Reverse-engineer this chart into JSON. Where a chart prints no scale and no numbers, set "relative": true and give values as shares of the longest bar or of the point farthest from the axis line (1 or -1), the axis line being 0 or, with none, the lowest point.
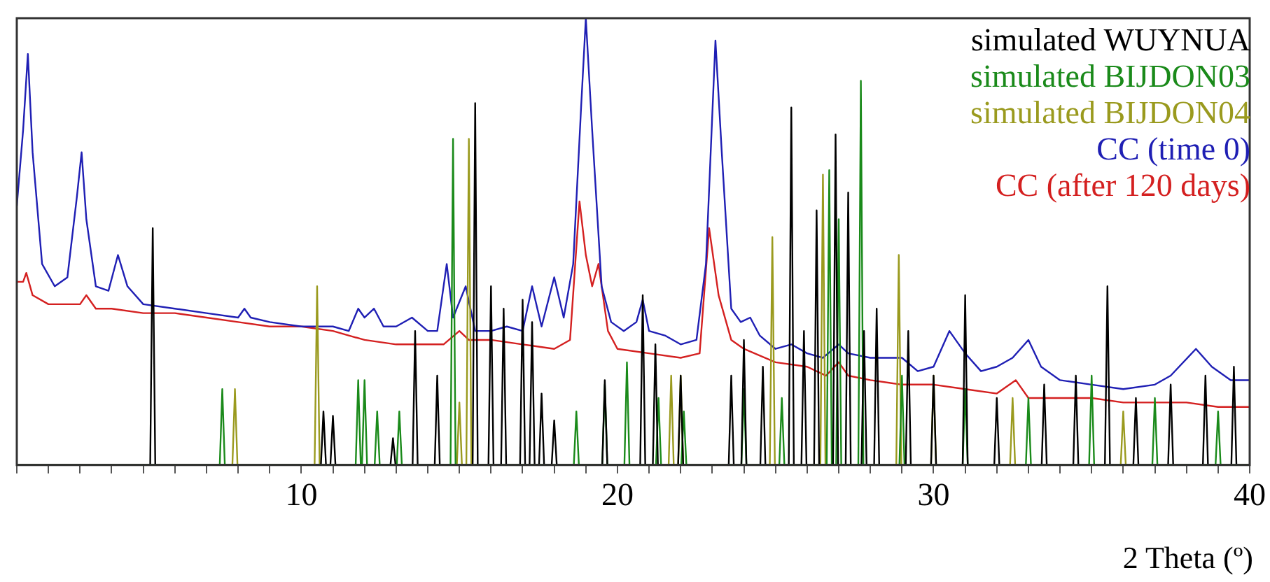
{
  "chart_data": {
    "type": "line",
    "relative": true,
    "xlabel": "2 Theta (º)",
    "legend": "top right",
    "grid": false,
    "marker": "none",
    "line_style": "solid",
    "tick_labels": "x",
    "xlim": [
      1,
      40
    ],
    "xticks": [
      {
        "value": 1,
        "label": null
      },
      {
        "value": 2,
        "label": null
      },
      {
        "value": 3,
        "label": null
      },
      {
        "value": 4,
        "label": null
      },
      {
        "value": 5,
        "label": null
      },
      {
        "value": 6,
        "label": null
      },
      {
        "value": 7,
        "label": null
      },
      {
        "value": 8,
        "label": null
      },
      {
        "value": 9,
        "label": null
      },
      10,
      {
        "value": 11,
        "label": null
      },
      {
        "value": 12,
        "label": null
      },
      {
        "value": 13,
        "label": null
      },
      {
        "value": 14,
        "label": null
      },
      {
        "value": 15,
        "label": null
      },
      {
        "value": 16,
        "label": null
      },
      {
        "value": 17,
        "label": null
      },
      {
        "value": 18,
        "label": null
      },
      {
        "value": 19,
        "label": null
      },
      20,
      {
        "value": 21,
        "label": null
      },
      {
        "value": 22,
        "label": null
      },
      {
        "value": 23,
        "label": null
      },
      {
        "value": 24,
        "label": null
      },
      {
        "value": 25,
        "label": null
      },
      {
        "value": 26,
        "label": null
      },
      {
        "value": 27,
        "label": null
      },
      {
        "value": 28,
        "label": null
      },
      {
        "value": 29,
        "label": null
      },
      30,
      {
        "value": 31,
        "label": null
      },
      {
        "value": 32,
        "label": null
      },
      {
        "value": 33,
        "label": null
      },
      {
        "value": 34,
        "label": null
      },
      {
        "value": 35,
        "label": null
      },
      {
        "value": 36,
        "label": null
      },
      {
        "value": 37,
        "label": null
      },
      {
        "value": 38,
        "label": null
      },
      {
        "value": 39,
        "label": null
      },
      40
    ],
    "series": [
      {
        "name": "simulated WUYNUA",
        "color": "#000000",
        "x": [
          1,
          5.22,
          5.3,
          5.38,
          10.62,
          10.7,
          10.78,
          10.92,
          11,
          11.08,
          12.82,
          12.9,
          12.98,
          13.52,
          13.6,
          13.68,
          14.22,
          14.3,
          14.38,
          15.42,
          15.5,
          15.58,
          15.92,
          16,
          16.08,
          16.32,
          16.4,
          16.48,
          16.92,
          17,
          17.08,
          17.22,
          17.3,
          17.38,
          17.52,
          17.6,
          17.68,
          17.92,
          18,
          18.08,
          19.52,
          19.6,
          19.68,
          20.72,
          20.8,
          20.88,
          21.12,
          21.2,
          21.28,
          21.92,
          22,
          22.08,
          23.52,
          23.6,
          23.68,
          23.92,
          24,
          24.08,
          24.52,
          24.6,
          24.68,
          25.42,
          25.5,
          25.58,
          25.82,
          25.9,
          25.98,
          26.22,
          26.3,
          26.38,
          26.82,
          26.9,
          26.98,
          27.22,
          27.3,
          27.38,
          27.72,
          27.8,
          27.88,
          28.12,
          28.2,
          28.28,
          29.12,
          29.2,
          29.28,
          29.92,
          30,
          30.08,
          30.92,
          31,
          31.08,
          31.92,
          32,
          32.08,
          33.42,
          33.5,
          33.58,
          34.42,
          34.5,
          34.58,
          35.42,
          35.5,
          35.58,
          36.32,
          36.4,
          36.48,
          37.42,
          37.5,
          37.58,
          38.52,
          38.6,
          38.68,
          39.42,
          39.5,
          39.58,
          40
        ],
        "values": [
          0,
          0,
          0.53,
          0,
          0,
          0.12,
          0,
          0,
          0.11,
          0,
          0,
          0.06,
          0,
          0,
          0.3,
          0,
          0,
          0.2,
          0,
          0,
          0.81,
          0,
          0,
          0.4,
          0,
          0,
          0.35,
          0,
          0,
          0.37,
          0,
          0,
          0.32,
          0,
          0,
          0.16,
          0,
          0,
          0.1,
          0,
          0,
          0.19,
          0,
          0,
          0.38,
          0,
          0,
          0.27,
          0,
          0,
          0.2,
          0,
          0,
          0.2,
          0,
          0,
          0.28,
          0,
          0,
          0.22,
          0,
          0,
          0.8,
          0,
          0,
          0.3,
          0,
          0,
          0.57,
          0,
          0,
          0.74,
          0,
          0,
          0.61,
          0,
          0,
          0.3,
          0,
          0,
          0.35,
          0,
          0,
          0.3,
          0,
          0,
          0.2,
          0,
          0,
          0.38,
          0,
          0,
          0.15,
          0,
          0,
          0.18,
          0,
          0,
          0.2,
          0,
          0,
          0.4,
          0,
          0,
          0.15,
          0,
          0,
          0.18,
          0,
          0,
          0.2,
          0,
          0,
          0.22,
          0,
          0
        ]
      },
      {
        "name": "simulated BIJDON03",
        "color": "#1a8a1a",
        "x": [
          1,
          7.42,
          7.5,
          7.58,
          11.72,
          11.8,
          11.88,
          11.92,
          12,
          12.08,
          12.32,
          12.4,
          12.48,
          13.02,
          13.1,
          13.18,
          14.72,
          14.8,
          14.88,
          18.62,
          18.7,
          18.78,
          19.52,
          19.6,
          19.68,
          20.22,
          20.3,
          20.38,
          21.22,
          21.3,
          21.38,
          22.02,
          22.1,
          22.18,
          23.92,
          24,
          24.08,
          25.12,
          25.2,
          25.28,
          26.62,
          26.7,
          26.78,
          26.92,
          27,
          27.08,
          27.62,
          27.7,
          27.78,
          28.92,
          29,
          29.08,
          30.92,
          31,
          31.08,
          32.92,
          33,
          33.08,
          34.92,
          35,
          35.08,
          36.92,
          37,
          37.08,
          38.92,
          39,
          39.08,
          40
        ],
        "values": [
          0,
          0,
          0.17,
          0,
          0,
          0.19,
          0,
          0,
          0.19,
          0,
          0,
          0.12,
          0,
          0,
          0.12,
          0,
          0,
          0.73,
          0,
          0,
          0.12,
          0,
          0,
          0.18,
          0,
          0,
          0.23,
          0,
          0,
          0.15,
          0,
          0,
          0.12,
          0,
          0,
          0.17,
          0,
          0,
          0.15,
          0,
          0,
          0.66,
          0,
          0,
          0.55,
          0,
          0,
          0.86,
          0,
          0,
          0.2,
          0,
          0,
          0.17,
          0,
          0,
          0.15,
          0,
          0,
          0.2,
          0,
          0,
          0.15,
          0,
          0,
          0.12,
          0,
          0
        ]
      },
      {
        "name": "simulated BIJDON04",
        "color": "#9a9a1e",
        "x": [
          1,
          7.82,
          7.9,
          7.98,
          10.42,
          10.5,
          10.58,
          14.92,
          15,
          15.08,
          15.22,
          15.3,
          15.38,
          21.62,
          21.7,
          21.78,
          21.92,
          22,
          22.08,
          24.82,
          24.9,
          24.98,
          26.42,
          26.5,
          26.58,
          28.82,
          28.9,
          28.98,
          29.92,
          30,
          30.08,
          32.42,
          32.5,
          32.58,
          35.92,
          36,
          36.08,
          40
        ],
        "values": [
          0,
          0,
          0.17,
          0,
          0,
          0.4,
          0,
          0,
          0.14,
          0,
          0,
          0.73,
          0,
          0,
          0.2,
          0,
          0,
          0.2,
          0,
          0,
          0.51,
          0,
          0,
          0.65,
          0,
          0,
          0.47,
          0,
          0,
          0.2,
          0,
          0,
          0.15,
          0,
          0,
          0.12,
          0,
          0
        ]
      },
      {
        "name": "CC (time 0)",
        "color": "#1f1fb4",
        "x": [
          1,
          1.2,
          1.35,
          1.5,
          1.8,
          2.2,
          2.6,
          2.9,
          3.05,
          3.2,
          3.5,
          3.9,
          4.2,
          4.5,
          5,
          6,
          7,
          8,
          8.2,
          8.4,
          9,
          10,
          11,
          11.5,
          11.8,
          12,
          12.3,
          12.6,
          13,
          13.5,
          14,
          14.3,
          14.6,
          14.8,
          15.2,
          15.5,
          16,
          16.5,
          17,
          17.3,
          17.6,
          18,
          18.3,
          18.6,
          18.85,
          19,
          19.2,
          19.5,
          19.8,
          20.2,
          20.6,
          20.8,
          21,
          21.5,
          22,
          22.5,
          22.8,
          23.1,
          23.3,
          23.6,
          23.9,
          24.2,
          24.5,
          25,
          25.5,
          26,
          26.5,
          27,
          27.3,
          28,
          28.5,
          29,
          29.5,
          30,
          30.5,
          31,
          31.5,
          32,
          32.5,
          33,
          33.4,
          34,
          35,
          36,
          37,
          37.5,
          38.3,
          38.8,
          39.4,
          40
        ],
        "values": [
          0.58,
          0.75,
          0.92,
          0.7,
          0.45,
          0.4,
          0.42,
          0.6,
          0.7,
          0.55,
          0.4,
          0.39,
          0.47,
          0.4,
          0.36,
          0.35,
          0.34,
          0.33,
          0.35,
          0.33,
          0.32,
          0.31,
          0.31,
          0.3,
          0.35,
          0.33,
          0.35,
          0.31,
          0.31,
          0.33,
          0.3,
          0.3,
          0.45,
          0.33,
          0.4,
          0.3,
          0.3,
          0.31,
          0.3,
          0.4,
          0.31,
          0.42,
          0.33,
          0.45,
          0.8,
          1,
          0.75,
          0.4,
          0.32,
          0.3,
          0.32,
          0.37,
          0.3,
          0.29,
          0.27,
          0.28,
          0.45,
          0.95,
          0.7,
          0.35,
          0.32,
          0.33,
          0.29,
          0.26,
          0.27,
          0.25,
          0.24,
          0.27,
          0.25,
          0.24,
          0.24,
          0.24,
          0.21,
          0.22,
          0.3,
          0.25,
          0.21,
          0.22,
          0.24,
          0.28,
          0.22,
          0.19,
          0.18,
          0.17,
          0.18,
          0.2,
          0.26,
          0.22,
          0.19,
          0.19
        ]
      },
      {
        "name": "CC (after 120 days)",
        "color": "#d42020",
        "x": [
          1,
          1.2,
          1.3,
          1.5,
          2,
          3,
          3.2,
          3.5,
          4,
          5,
          6,
          7,
          8,
          9,
          10,
          11,
          11.5,
          12,
          13,
          14,
          14.5,
          15,
          15.3,
          16,
          17,
          18,
          18.5,
          18.8,
          19,
          19.2,
          19.4,
          19.7,
          20,
          21,
          22,
          22.6,
          22.9,
          23.2,
          23.6,
          24,
          25,
          26,
          26.6,
          27,
          27.3,
          28,
          29,
          30,
          31,
          32,
          32.6,
          33,
          34,
          35,
          36,
          37,
          38,
          39,
          40
        ],
        "values": [
          0.41,
          0.41,
          0.43,
          0.38,
          0.36,
          0.36,
          0.38,
          0.35,
          0.35,
          0.34,
          0.34,
          0.33,
          0.32,
          0.31,
          0.31,
          0.3,
          0.29,
          0.28,
          0.27,
          0.27,
          0.27,
          0.3,
          0.28,
          0.28,
          0.27,
          0.26,
          0.28,
          0.59,
          0.47,
          0.4,
          0.45,
          0.3,
          0.26,
          0.25,
          0.24,
          0.25,
          0.53,
          0.38,
          0.28,
          0.26,
          0.23,
          0.22,
          0.2,
          0.23,
          0.2,
          0.19,
          0.18,
          0.18,
          0.17,
          0.16,
          0.19,
          0.15,
          0.15,
          0.15,
          0.14,
          0.14,
          0.14,
          0.13,
          0.13
        ]
      }
    ]
  }
}
